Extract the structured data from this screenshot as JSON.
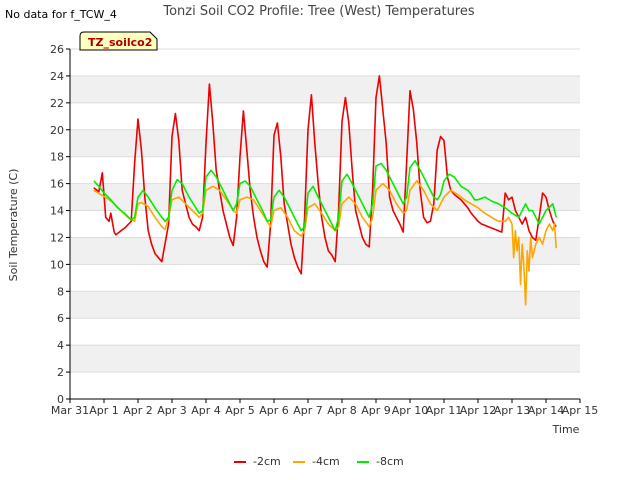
{
  "header": {
    "nodata": "No data for f_TCW_4",
    "title": "Tonzi Soil CO2 Profile: Tree (West) Temperatures"
  },
  "chart_data": {
    "type": "line",
    "title": "Tonzi Soil CO2 Profile: Tree (West) Temperatures",
    "xlabel": "Time",
    "ylabel": "Soil Temperature (C)",
    "xlim": [
      0,
      15
    ],
    "ylim": [
      0,
      26
    ],
    "x_ticks": [
      {
        "pos": 0,
        "label": "Mar 31"
      },
      {
        "pos": 1,
        "label": "Apr 1"
      },
      {
        "pos": 2,
        "label": "Apr 2"
      },
      {
        "pos": 3,
        "label": "Apr 3"
      },
      {
        "pos": 4,
        "label": "Apr 4"
      },
      {
        "pos": 5,
        "label": "Apr 5"
      },
      {
        "pos": 6,
        "label": "Apr 6"
      },
      {
        "pos": 7,
        "label": "Apr 7"
      },
      {
        "pos": 8,
        "label": "Apr 8"
      },
      {
        "pos": 9,
        "label": "Apr 9"
      },
      {
        "pos": 10,
        "label": "Apr 10"
      },
      {
        "pos": 11,
        "label": "Apr 11"
      },
      {
        "pos": 12,
        "label": "Apr 12"
      },
      {
        "pos": 13,
        "label": "Apr 13"
      },
      {
        "pos": 14,
        "label": "Apr 14"
      },
      {
        "pos": 15,
        "label": "Apr 15"
      }
    ],
    "y_ticks": [
      0,
      2,
      4,
      6,
      8,
      10,
      12,
      14,
      16,
      18,
      20,
      22,
      24,
      26
    ],
    "grid": "horizontal alternating bands",
    "legend_position": "bottom-center",
    "annotation": "TZ_soilco2",
    "series": [
      {
        "name": "-2cm",
        "color": "#ee0000",
        "x": [
          0.7,
          0.85,
          0.95,
          1.05,
          1.15,
          1.2,
          1.3,
          1.35,
          1.5,
          1.65,
          1.8,
          1.9,
          2.0,
          2.1,
          2.2,
          2.3,
          2.4,
          2.5,
          2.7,
          2.9,
          3.0,
          3.1,
          3.2,
          3.3,
          3.4,
          3.5,
          3.6,
          3.7,
          3.8,
          3.9,
          4.0,
          4.1,
          4.2,
          4.3,
          4.4,
          4.5,
          4.6,
          4.7,
          4.8,
          4.9,
          5.0,
          5.1,
          5.2,
          5.3,
          5.4,
          5.5,
          5.6,
          5.7,
          5.8,
          5.9,
          6.0,
          6.1,
          6.2,
          6.3,
          6.4,
          6.5,
          6.6,
          6.7,
          6.8,
          6.9,
          7.0,
          7.1,
          7.2,
          7.3,
          7.4,
          7.5,
          7.6,
          7.7,
          7.8,
          7.9,
          8.0,
          8.1,
          8.2,
          8.3,
          8.4,
          8.5,
          8.6,
          8.7,
          8.8,
          8.9,
          9.0,
          9.1,
          9.2,
          9.3,
          9.4,
          9.5,
          9.6,
          9.7,
          9.8,
          9.9,
          10.0,
          10.1,
          10.2,
          10.3,
          10.4,
          10.5,
          10.6,
          10.7,
          10.8,
          10.9,
          11.0,
          11.1,
          11.2,
          11.3,
          11.4,
          11.5,
          11.6,
          11.7,
          11.8,
          11.9,
          12.0,
          12.1,
          12.2,
          12.3,
          12.4,
          12.5,
          12.6,
          12.7,
          12.8,
          12.9,
          13.0,
          13.1,
          13.2,
          13.3,
          13.4,
          13.5,
          13.6,
          13.7,
          13.8,
          13.9,
          14.0,
          14.1,
          14.2,
          14.3
        ],
        "values": [
          15.7,
          15.4,
          16.8,
          13.5,
          13.2,
          13.8,
          12.4,
          12.2,
          12.5,
          12.8,
          13.2,
          17.5,
          20.8,
          18.5,
          15.0,
          12.5,
          11.5,
          10.8,
          10.2,
          13.0,
          19.5,
          21.2,
          19.2,
          15.5,
          14.5,
          13.5,
          13.0,
          12.8,
          12.5,
          13.5,
          19.0,
          23.4,
          20.5,
          17.0,
          15.5,
          14.0,
          13.0,
          12.0,
          11.4,
          13.5,
          18.0,
          21.4,
          18.5,
          15.5,
          13.5,
          12.0,
          11.0,
          10.2,
          9.8,
          13.0,
          19.6,
          20.5,
          18.0,
          14.5,
          13.0,
          11.5,
          10.5,
          9.8,
          9.3,
          13.5,
          20.0,
          22.6,
          19.0,
          16.0,
          13.5,
          12.0,
          11.0,
          10.7,
          10.2,
          14.0,
          20.6,
          22.4,
          20.5,
          17.0,
          14.0,
          13.0,
          12.0,
          11.5,
          11.3,
          15.5,
          22.4,
          24.0,
          21.5,
          19.0,
          15.0,
          14.0,
          13.5,
          13.0,
          12.4,
          17.5,
          22.9,
          21.5,
          19.0,
          15.5,
          13.5,
          13.1,
          13.2,
          14.5,
          18.5,
          19.5,
          19.2,
          16.5,
          15.5,
          15.2,
          15.0,
          14.8,
          14.5,
          14.2,
          13.8,
          13.5,
          13.2,
          13.0,
          12.9,
          12.8,
          12.7,
          12.6,
          12.5,
          12.4,
          15.3,
          14.8,
          15.0,
          14.0,
          13.5,
          13.0,
          13.5,
          12.5,
          12.0,
          11.8,
          13.5,
          15.3,
          15.0,
          14.0,
          13.2,
          12.8
        ]
      },
      {
        "name": "-4cm",
        "color": "#ffa500",
        "x": [
          0.7,
          0.9,
          1.1,
          1.3,
          1.5,
          1.7,
          1.9,
          2.0,
          2.1,
          2.3,
          2.5,
          2.7,
          2.8,
          2.9,
          3.0,
          3.2,
          3.4,
          3.6,
          3.8,
          3.9,
          4.0,
          4.2,
          4.4,
          4.6,
          4.8,
          4.9,
          5.0,
          5.2,
          5.4,
          5.6,
          5.8,
          5.9,
          6.0,
          6.2,
          6.4,
          6.6,
          6.8,
          6.9,
          7.0,
          7.2,
          7.4,
          7.6,
          7.8,
          7.9,
          8.0,
          8.2,
          8.4,
          8.6,
          8.8,
          8.9,
          9.0,
          9.2,
          9.4,
          9.6,
          9.8,
          9.9,
          10.0,
          10.2,
          10.4,
          10.6,
          10.8,
          10.9,
          11.0,
          11.2,
          11.4,
          11.6,
          11.8,
          12.0,
          12.2,
          12.4,
          12.6,
          12.8,
          12.9,
          13.0,
          13.05,
          13.1,
          13.15,
          13.2,
          13.25,
          13.3,
          13.35,
          13.4,
          13.45,
          13.5,
          13.55,
          13.6,
          13.7,
          13.8,
          13.9,
          14.0,
          14.1,
          14.2,
          14.25,
          14.3
        ],
        "values": [
          15.5,
          15.2,
          14.9,
          14.5,
          14.0,
          13.5,
          13.2,
          14.5,
          14.6,
          14.3,
          13.5,
          12.8,
          12.6,
          13.5,
          14.8,
          15.0,
          14.5,
          14.0,
          13.5,
          13.8,
          15.5,
          15.8,
          15.5,
          14.8,
          14.0,
          13.8,
          14.8,
          15.0,
          14.8,
          14.0,
          13.2,
          12.8,
          14.0,
          14.2,
          13.5,
          12.5,
          12.1,
          12.5,
          14.2,
          14.5,
          13.8,
          13.0,
          12.5,
          12.8,
          14.5,
          15.0,
          14.5,
          13.5,
          12.8,
          13.5,
          15.5,
          16.0,
          15.5,
          14.5,
          13.8,
          14.0,
          15.5,
          16.2,
          15.5,
          14.5,
          14.0,
          14.5,
          15.0,
          15.5,
          15.2,
          14.8,
          14.5,
          14.2,
          13.8,
          13.5,
          13.2,
          13.2,
          13.5,
          13.0,
          10.5,
          12.5,
          11.0,
          12.0,
          8.5,
          11.5,
          9.8,
          7.0,
          11.0,
          9.5,
          12.0,
          10.5,
          11.5,
          12.0,
          11.5,
          12.5,
          13.0,
          12.5,
          13.0,
          11.2
        ]
      },
      {
        "name": "-8cm",
        "color": "#00ee00",
        "x": [
          0.7,
          0.85,
          1.0,
          1.2,
          1.4,
          1.6,
          1.8,
          1.9,
          2.0,
          2.15,
          2.3,
          2.5,
          2.7,
          2.8,
          2.9,
          3.0,
          3.15,
          3.3,
          3.5,
          3.7,
          3.8,
          3.9,
          4.0,
          4.15,
          4.3,
          4.5,
          4.7,
          4.8,
          4.9,
          5.0,
          5.15,
          5.3,
          5.5,
          5.7,
          5.8,
          5.9,
          6.0,
          6.15,
          6.3,
          6.5,
          6.7,
          6.8,
          6.9,
          7.0,
          7.15,
          7.3,
          7.5,
          7.7,
          7.8,
          7.9,
          8.0,
          8.15,
          8.3,
          8.5,
          8.7,
          8.8,
          8.9,
          9.0,
          9.15,
          9.3,
          9.5,
          9.7,
          9.8,
          9.9,
          10.0,
          10.15,
          10.3,
          10.5,
          10.7,
          10.8,
          10.9,
          11.0,
          11.15,
          11.3,
          11.5,
          11.7,
          11.8,
          11.9,
          12.0,
          12.2,
          12.4,
          12.6,
          12.8,
          13.0,
          13.2,
          13.3,
          13.4,
          13.5,
          13.6,
          13.8,
          14.0,
          14.2,
          14.3
        ],
        "values": [
          16.2,
          15.8,
          15.3,
          14.8,
          14.2,
          13.8,
          13.3,
          13.5,
          15.0,
          15.5,
          15.0,
          14.2,
          13.5,
          13.2,
          13.5,
          15.5,
          16.3,
          16.0,
          15.0,
          14.2,
          13.8,
          14.0,
          16.5,
          17.0,
          16.5,
          15.5,
          14.5,
          14.0,
          14.5,
          16.0,
          16.2,
          15.8,
          14.8,
          13.8,
          13.2,
          13.3,
          15.0,
          15.5,
          15.0,
          14.0,
          13.0,
          12.5,
          12.8,
          15.3,
          15.8,
          15.0,
          14.0,
          13.0,
          12.5,
          13.5,
          16.2,
          16.7,
          16.0,
          15.0,
          14.0,
          13.5,
          14.5,
          17.3,
          17.5,
          17.0,
          16.0,
          15.0,
          14.5,
          15.0,
          17.2,
          17.7,
          17.0,
          16.0,
          15.0,
          14.8,
          15.2,
          16.2,
          16.7,
          16.5,
          15.8,
          15.5,
          15.2,
          14.8,
          14.8,
          15.0,
          14.7,
          14.5,
          14.2,
          13.8,
          13.5,
          14.0,
          14.5,
          14.0,
          14.0,
          13.0,
          14.0,
          14.5,
          13.5
        ]
      }
    ]
  }
}
